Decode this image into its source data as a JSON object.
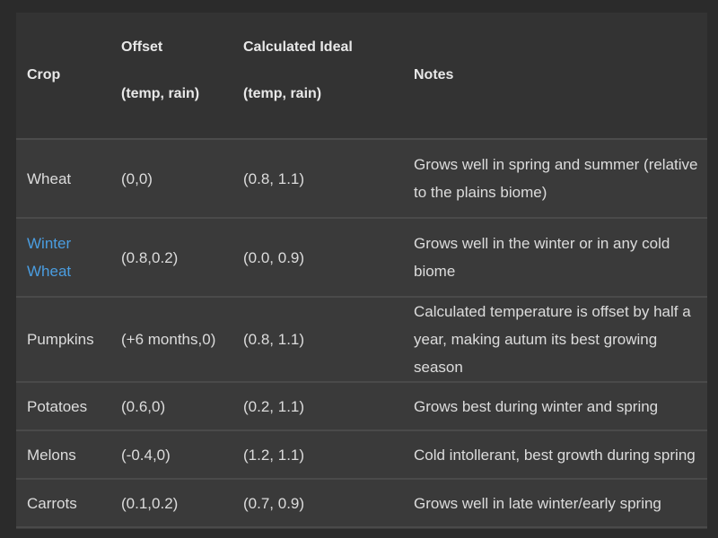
{
  "table": {
    "headers": {
      "crop": "Crop",
      "offset_line1": "Offset",
      "offset_line2": "(temp, rain)",
      "ideal_line1": "Calculated Ideal",
      "ideal_line2": "(temp, rain)",
      "notes": "Notes"
    },
    "rows": [
      {
        "crop": "Wheat",
        "offset": "(0,0)",
        "ideal": "(0.8, 1.1)",
        "notes": "Grows well in spring and summer (relative to the plains biome)"
      },
      {
        "crop": "Winter Wheat",
        "offset": "(0.8,0.2)",
        "ideal": "(0.0, 0.9)",
        "notes": "Grows well in the winter or in any cold biome"
      },
      {
        "crop": "Pumpkins",
        "offset": "(+6 months,0)",
        "ideal": "(0.8, 1.1)",
        "notes": "Calculated temperature is offset by half a year, making autum its best growing season"
      },
      {
        "crop": "Potatoes",
        "offset": "(0.6,0)",
        "ideal": "(0.2, 1.1)",
        "notes": "Grows best during winter and spring"
      },
      {
        "crop": "Melons",
        "offset": "(-0.4,0)",
        "ideal": "(1.2, 1.1)",
        "notes": "Cold intollerant, best growth during spring"
      },
      {
        "crop": "Carrots",
        "offset": "(0.1,0.2)",
        "ideal": "(0.7, 0.9)",
        "notes": "Grows well in late winter/early spring"
      }
    ]
  },
  "colors": {
    "link": "#4a9de0",
    "header_bg": "#333333",
    "body_bg": "#3a3a3a"
  }
}
